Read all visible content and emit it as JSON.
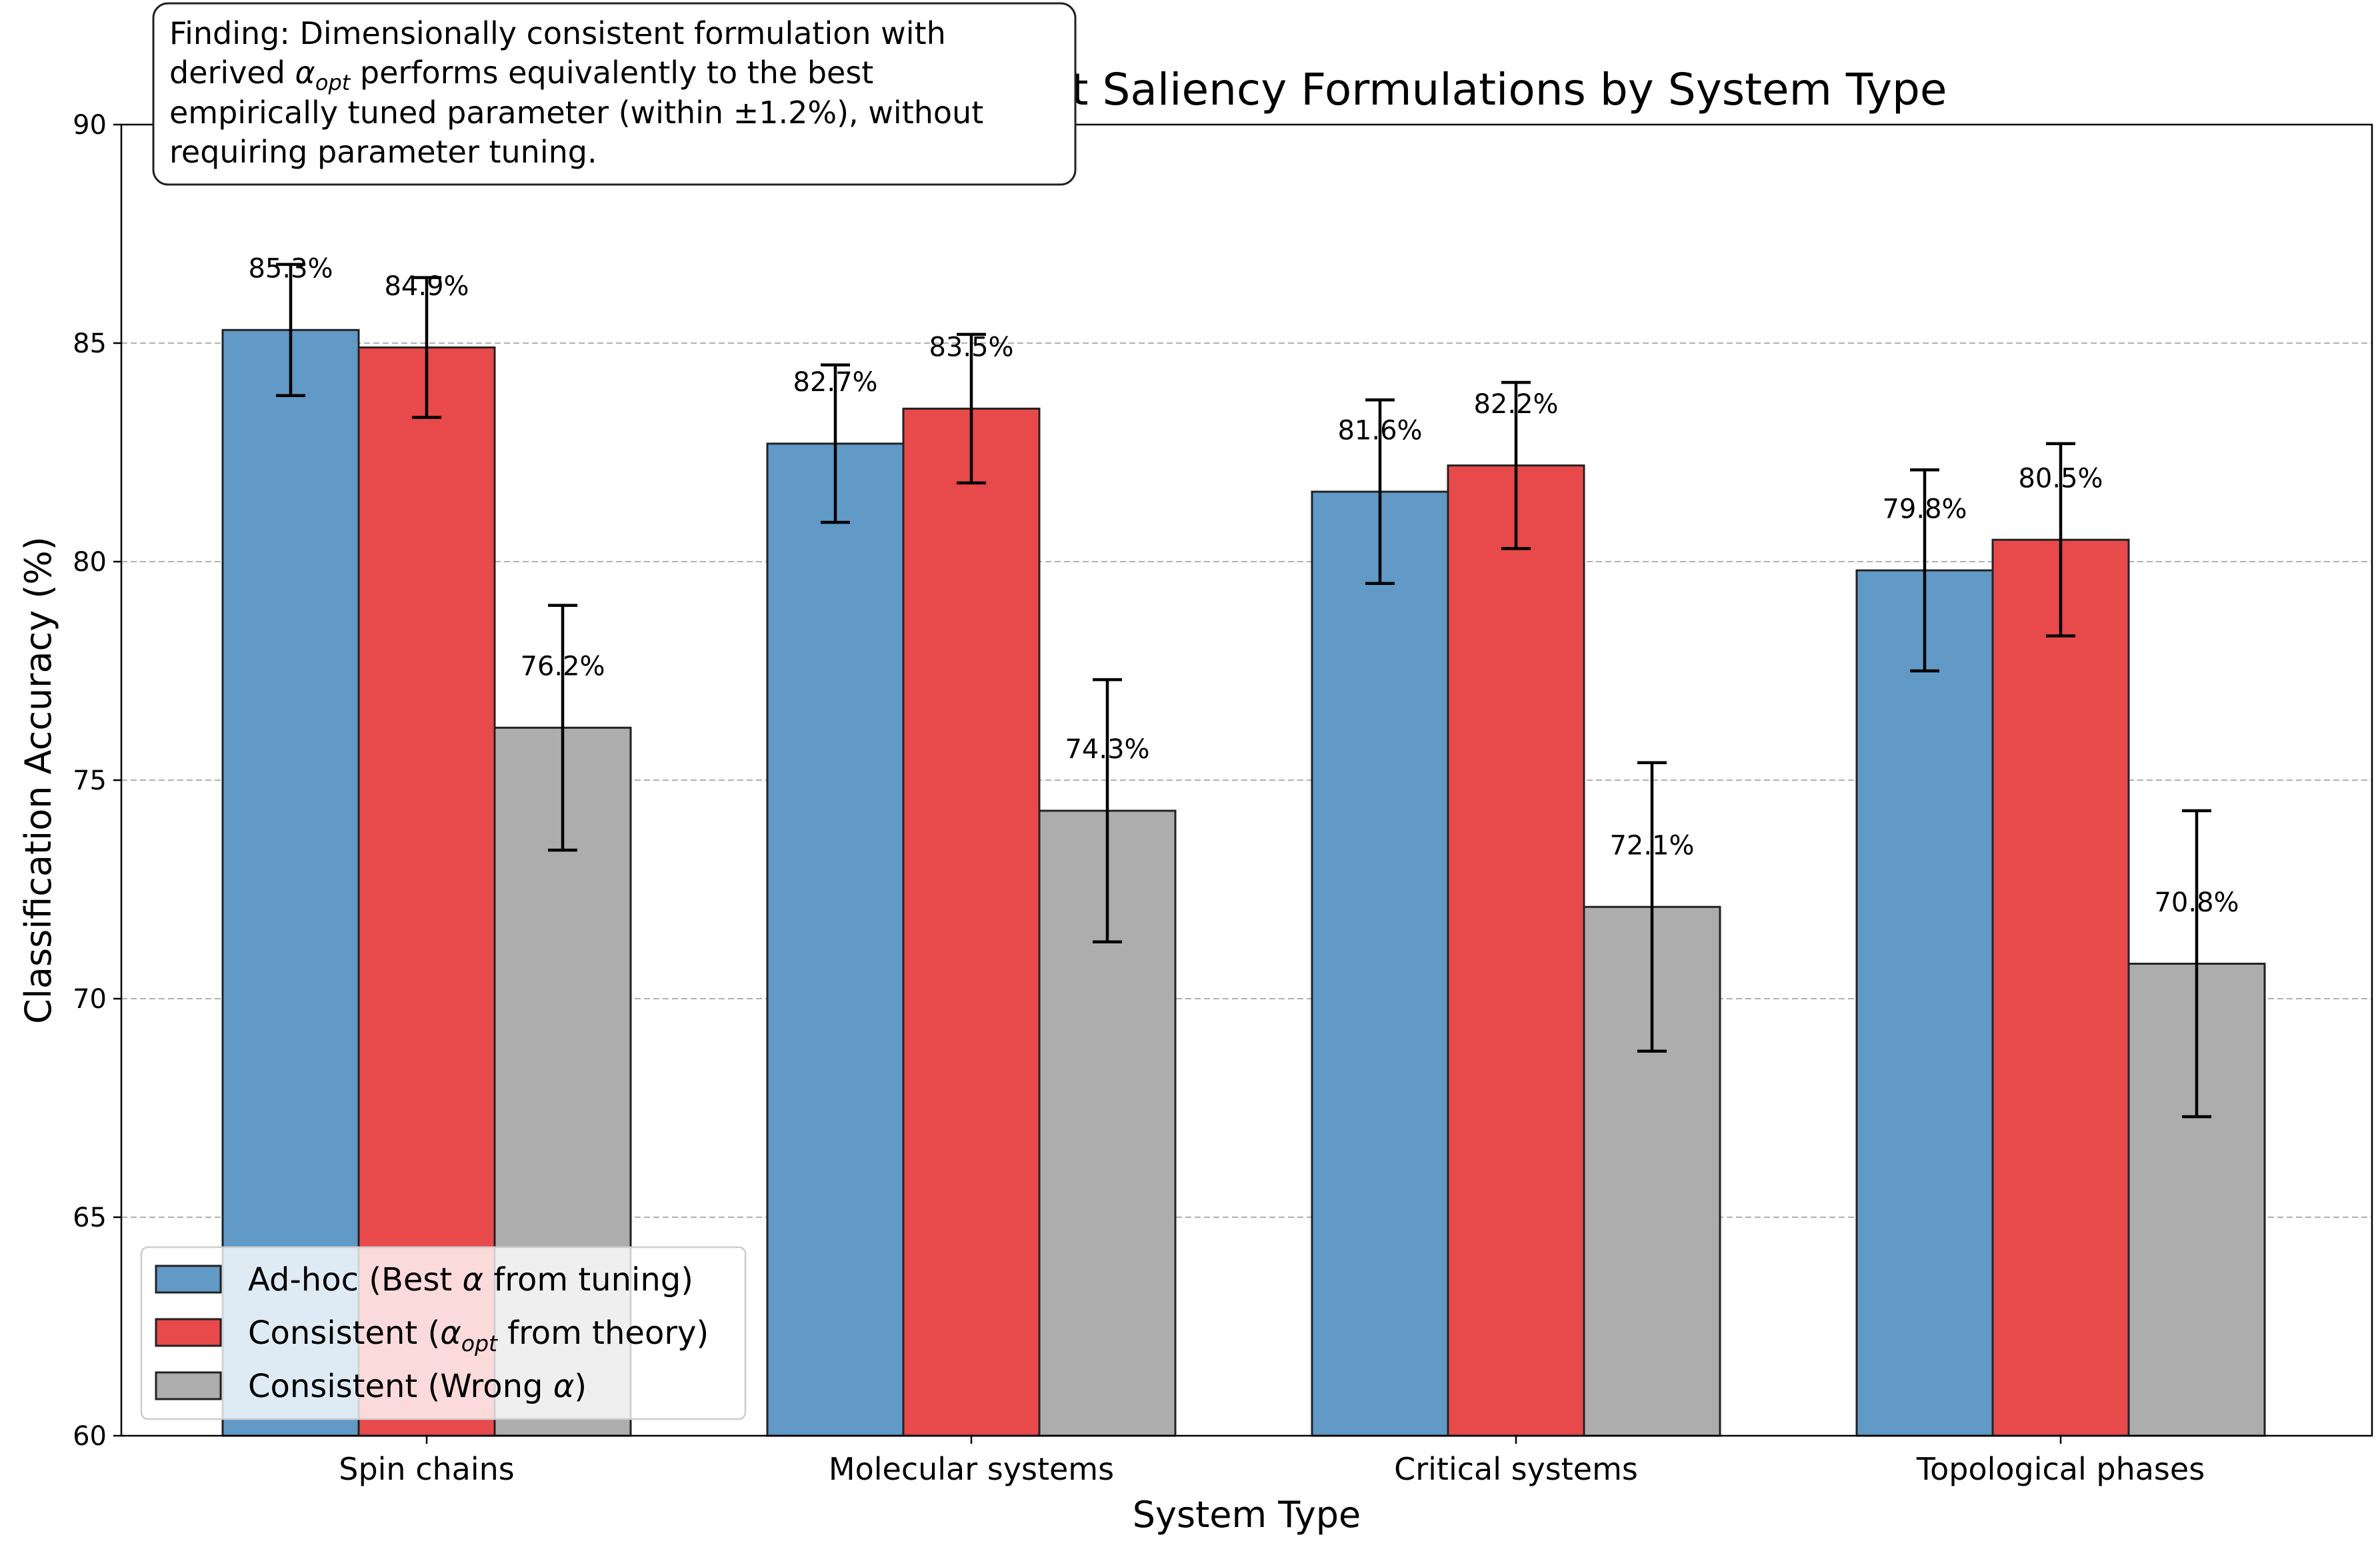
{
  "chart_data": {
    "type": "bar",
    "title": "Performance of Different Saliency Formulations by System Type",
    "xlabel": "System Type",
    "ylabel": "Classification Accuracy (%)",
    "ylim": [
      60,
      90
    ],
    "yticks": [
      60,
      65,
      70,
      75,
      80,
      85,
      90
    ],
    "grid": "y-dashed",
    "legend_position": "bottom-left",
    "categories": [
      "Spin chains",
      "Molecular systems",
      "Critical systems",
      "Topological phases"
    ],
    "series": [
      {
        "name": "Ad-hoc (Best α from tuning)",
        "legend_parts": [
          "Ad-hoc (Best ",
          "α",
          "",
          " from tuning)"
        ],
        "color": "#6199c7",
        "values": [
          85.3,
          82.7,
          81.6,
          79.8
        ],
        "errors": [
          1.5,
          1.8,
          2.1,
          2.3
        ],
        "labels": [
          "85.3%",
          "82.7%",
          "81.6%",
          "79.8%"
        ]
      },
      {
        "name": "Consistent (αopt from theory)",
        "legend_parts": [
          "Consistent (",
          "α",
          "opt",
          " from theory)"
        ],
        "color": "#e8494a",
        "values": [
          84.9,
          83.5,
          82.2,
          80.5
        ],
        "errors": [
          1.6,
          1.7,
          1.9,
          2.2
        ],
        "labels": [
          "84.9%",
          "83.5%",
          "82.2%",
          "80.5%"
        ]
      },
      {
        "name": "Consistent (Wrong α)",
        "legend_parts": [
          "Consistent (Wrong ",
          "α",
          "",
          ")"
        ],
        "color": "#adadad",
        "values": [
          76.2,
          74.3,
          72.1,
          70.8
        ],
        "errors": [
          2.8,
          3.0,
          3.3,
          3.5
        ],
        "labels": [
          "76.2%",
          "74.3%",
          "72.1%",
          "70.8%"
        ]
      }
    ],
    "annotation": {
      "line1": "Finding: Dimensionally consistent formulation with",
      "line2_a": "derived ",
      "line2_sym": "α",
      "line2_sub": "opt",
      "line2_b": " performs equivalently to the best",
      "line3": "empirically tuned parameter (within ±1.2%), without",
      "line4": "requiring parameter tuning."
    }
  }
}
